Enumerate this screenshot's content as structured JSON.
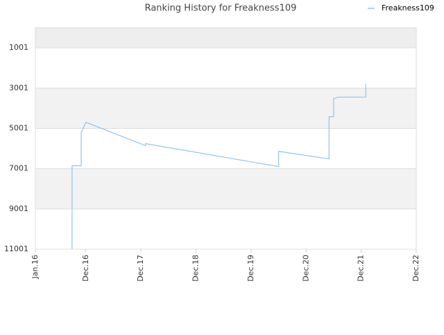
{
  "chart_data": {
    "type": "line",
    "title": "Ranking History for Freakness109",
    "x": [
      "2016-09",
      "2016-09",
      "2016-09",
      "2016-11",
      "2016-11",
      "2016-12",
      "2018-01",
      "2018-01",
      "2020-06",
      "2020-06",
      "2021-05",
      "2021-05",
      "2021-06",
      "2021-06",
      "2021-07",
      "2022-01",
      "2022-01"
    ],
    "series": [
      {
        "name": "Freakness109",
        "color": "#8ec4ee",
        "values": [
          11001,
          8400,
          6860,
          6860,
          5200,
          4700,
          5860,
          5760,
          6900,
          6140,
          6520,
          4420,
          4420,
          3520,
          3450,
          3450,
          2800
        ]
      }
    ],
    "xlim": [
      "2016-01",
      "2022-12"
    ],
    "xticks": [
      {
        "value": "2016-01",
        "label": "Jan.16"
      },
      {
        "value": "2016-12",
        "label": "Dec.16"
      },
      {
        "value": "2017-12",
        "label": "Dec.17"
      },
      {
        "value": "2018-12",
        "label": "Dec.18"
      },
      {
        "value": "2019-12",
        "label": "Dec.19"
      },
      {
        "value": "2020-12",
        "label": "Dec.20"
      },
      {
        "value": "2021-12",
        "label": "Dec.21"
      },
      {
        "value": "2022-12",
        "label": "Dec.22"
      }
    ],
    "ylim": [
      1,
      11001
    ],
    "yticks": [
      1001,
      3001,
      5001,
      7001,
      9001,
      11001
    ],
    "y_inverted": true,
    "grid": true,
    "legend": "top-right"
  }
}
